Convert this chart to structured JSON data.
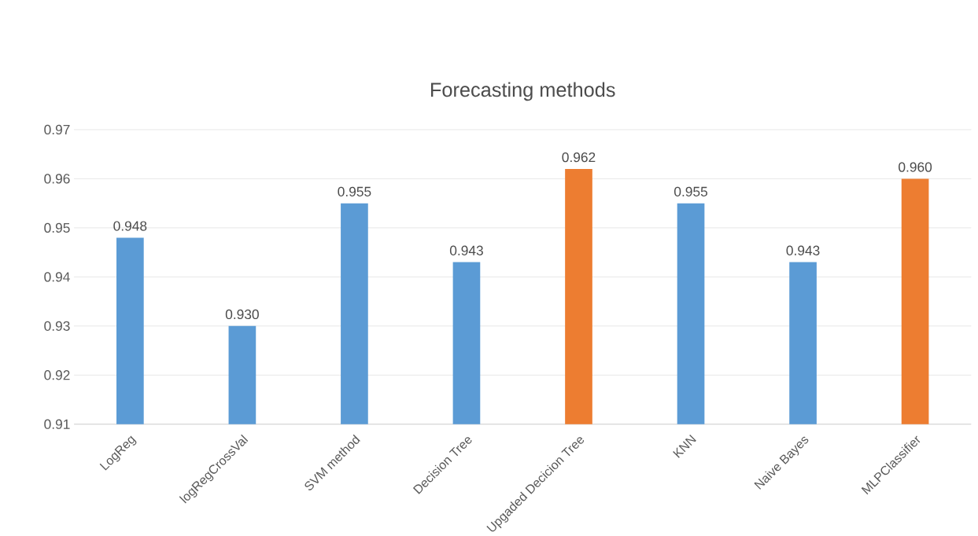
{
  "chart_data": {
    "type": "bar",
    "title": "Forecasting methods",
    "categories": [
      "LogReg",
      "logRegCrossVal",
      "SVM method",
      "Decision Tree",
      "Upgaded Decicion Tree",
      "KNN",
      "Naive Bayes",
      "MLPClassifier"
    ],
    "values": [
      0.948,
      0.93,
      0.955,
      0.943,
      0.962,
      0.955,
      0.943,
      0.96
    ],
    "value_labels": [
      "0.948",
      "0.930",
      "0.955",
      "0.943",
      "0.962",
      "0.955",
      "0.943",
      "0.960"
    ],
    "colors": [
      "#5b9bd5",
      "#5b9bd5",
      "#5b9bd5",
      "#5b9bd5",
      "#ed7d31",
      "#5b9bd5",
      "#5b9bd5",
      "#ed7d31"
    ],
    "ylim": [
      0.91,
      0.97
    ],
    "yticks": [
      0.91,
      0.92,
      0.93,
      0.94,
      0.95,
      0.96,
      0.97
    ],
    "grid": "y"
  }
}
